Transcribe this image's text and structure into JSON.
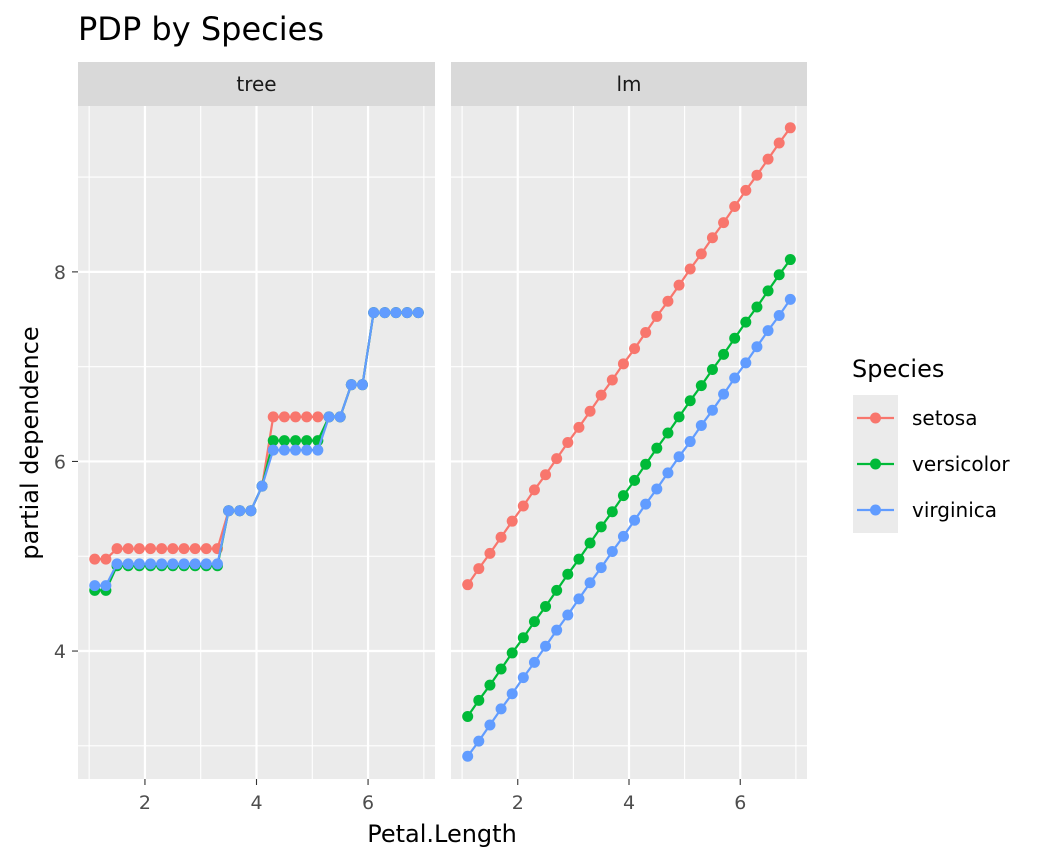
{
  "chart_data": {
    "type": "line",
    "title": "PDP by Species",
    "xlabel": "Petal.Length",
    "ylabel": "partial dependence",
    "xlim": [
      0.8,
      7.2
    ],
    "ylim": [
      2.65,
      9.75
    ],
    "x_ticks": [
      2,
      4,
      6
    ],
    "y_ticks": [
      4,
      6,
      8
    ],
    "grid": true,
    "legend": {
      "title": "Species",
      "position": "right"
    },
    "colors": {
      "setosa": "#F8766D",
      "versicolor": "#00BA38",
      "virginica": "#619CFF"
    },
    "facets": [
      {
        "label": "tree",
        "x": [
          1.1,
          1.3,
          1.5,
          1.7,
          1.9,
          2.1,
          2.3,
          2.5,
          2.7,
          2.9,
          3.1,
          3.3,
          3.5,
          3.7,
          3.9,
          4.1,
          4.3,
          4.5,
          4.7,
          4.9,
          5.1,
          5.3,
          5.5,
          5.7,
          5.9,
          6.1,
          6.3,
          6.5,
          6.7,
          6.9
        ],
        "series": [
          {
            "name": "setosa",
            "values": [
              4.97,
              4.97,
              5.08,
              5.08,
              5.08,
              5.08,
              5.08,
              5.08,
              5.08,
              5.08,
              5.08,
              5.08,
              5.48,
              5.48,
              5.48,
              5.74,
              6.47,
              6.47,
              6.47,
              6.47,
              6.47,
              6.47,
              6.47,
              6.81,
              6.81,
              7.57,
              7.57,
              7.57,
              7.57,
              7.57
            ]
          },
          {
            "name": "versicolor",
            "values": [
              4.64,
              4.64,
              4.9,
              4.9,
              4.9,
              4.9,
              4.9,
              4.9,
              4.9,
              4.9,
              4.9,
              4.9,
              5.48,
              5.48,
              5.48,
              5.74,
              6.22,
              6.22,
              6.22,
              6.22,
              6.22,
              6.47,
              6.47,
              6.81,
              6.81,
              7.57,
              7.57,
              7.57,
              7.57,
              7.57
            ]
          },
          {
            "name": "virginica",
            "values": [
              4.69,
              4.69,
              4.92,
              4.92,
              4.92,
              4.92,
              4.92,
              4.92,
              4.92,
              4.92,
              4.92,
              4.92,
              5.48,
              5.48,
              5.48,
              5.74,
              6.12,
              6.12,
              6.12,
              6.12,
              6.12,
              6.47,
              6.47,
              6.81,
              6.81,
              7.57,
              7.57,
              7.57,
              7.57,
              7.57
            ]
          }
        ]
      },
      {
        "label": "lm",
        "x": [
          1.1,
          1.3,
          1.5,
          1.7,
          1.9,
          2.1,
          2.3,
          2.5,
          2.7,
          2.9,
          3.1,
          3.3,
          3.5,
          3.7,
          3.9,
          4.1,
          4.3,
          4.5,
          4.7,
          4.9,
          5.1,
          5.3,
          5.5,
          5.7,
          5.9,
          6.1,
          6.3,
          6.5,
          6.7,
          6.9
        ],
        "series": [
          {
            "name": "setosa",
            "values": [
              4.7,
              4.87,
              5.03,
              5.2,
              5.37,
              5.53,
              5.7,
              5.86,
              6.03,
              6.2,
              6.36,
              6.53,
              6.7,
              6.86,
              7.03,
              7.19,
              7.36,
              7.53,
              7.69,
              7.86,
              8.03,
              8.19,
              8.36,
              8.52,
              8.69,
              8.86,
              9.02,
              9.19,
              9.36,
              9.52
            ]
          },
          {
            "name": "versicolor",
            "values": [
              3.31,
              3.48,
              3.64,
              3.81,
              3.98,
              4.14,
              4.31,
              4.47,
              4.64,
              4.81,
              4.97,
              5.14,
              5.31,
              5.47,
              5.64,
              5.8,
              5.97,
              6.14,
              6.3,
              6.47,
              6.64,
              6.8,
              6.97,
              7.13,
              7.3,
              7.47,
              7.63,
              7.8,
              7.97,
              8.13
            ]
          },
          {
            "name": "virginica",
            "values": [
              2.89,
              3.05,
              3.22,
              3.39,
              3.55,
              3.72,
              3.88,
              4.05,
              4.22,
              4.38,
              4.55,
              4.72,
              4.88,
              5.05,
              5.21,
              5.38,
              5.55,
              5.71,
              5.88,
              6.05,
              6.21,
              6.38,
              6.54,
              6.71,
              6.88,
              7.04,
              7.21,
              7.38,
              7.54,
              7.71
            ]
          }
        ]
      }
    ]
  }
}
